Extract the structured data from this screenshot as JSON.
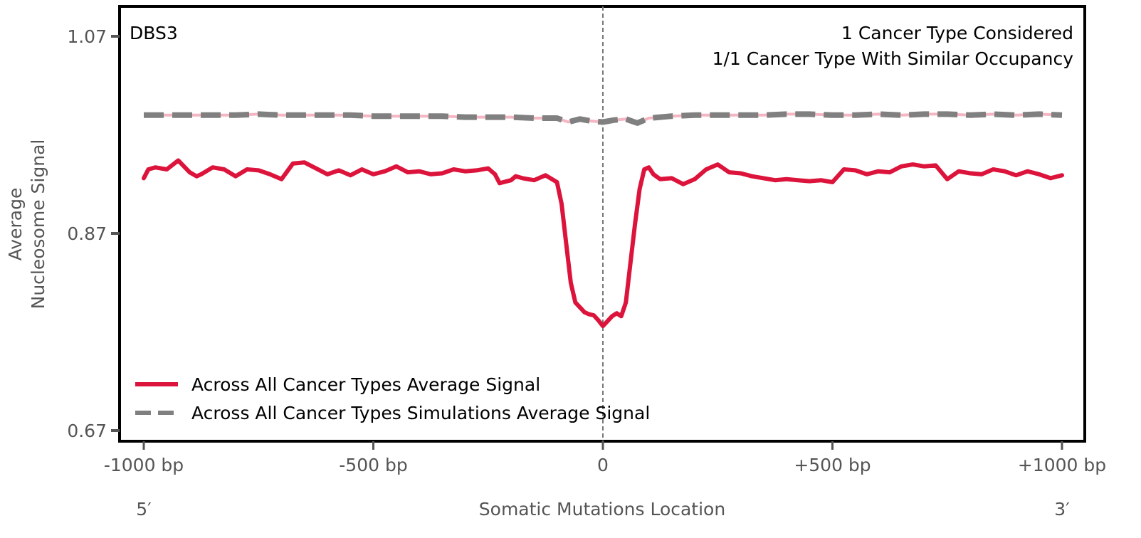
{
  "chart_data": {
    "type": "line",
    "title": "",
    "signature_label": "DBS3",
    "annotations": [
      "1 Cancer Type Considered",
      "1/1 Cancer Type With Similar Occupancy"
    ],
    "xlabel": "Somatic Mutations Location",
    "ylabel_lines": [
      "Average",
      "Nucleosome Signal"
    ],
    "x_end_labels": {
      "left": "5′",
      "right": "3′"
    },
    "xlim": [
      -1000,
      1000
    ],
    "ylim": [
      0.67,
      1.07
    ],
    "x_ticks": [
      {
        "value": -1000,
        "label": "-1000 bp"
      },
      {
        "value": -500,
        "label": "-500 bp"
      },
      {
        "value": 0,
        "label": "0"
      },
      {
        "value": 500,
        "label": "+500 bp"
      },
      {
        "value": 1000,
        "label": "+1000 bp"
      }
    ],
    "y_ticks": [
      {
        "value": 1.07,
        "label": "1.07"
      },
      {
        "value": 0.87,
        "label": "0.87"
      },
      {
        "value": 0.67,
        "label": "0.67"
      }
    ],
    "grid": false,
    "center_line": {
      "x": 0,
      "style": "dashed",
      "color": "#777777"
    },
    "legend": {
      "position": "bottom-left",
      "entries": [
        {
          "label": "Across All Cancer Types Average Signal",
          "style": "solid",
          "color": "#DC143C"
        },
        {
          "label": "Across All Cancer Types Simulations Average Signal",
          "style": "dashed",
          "color": "#808080"
        }
      ]
    },
    "series": [
      {
        "name": "Across All Cancer Types Average Signal",
        "color": "#DC143C",
        "style": "solid",
        "x": [
          -1000,
          -990,
          -975,
          -950,
          -925,
          -900,
          -885,
          -875,
          -850,
          -825,
          -800,
          -775,
          -750,
          -725,
          -700,
          -675,
          -650,
          -625,
          -600,
          -575,
          -550,
          -525,
          -500,
          -475,
          -450,
          -425,
          -400,
          -375,
          -350,
          -325,
          -300,
          -275,
          -250,
          -235,
          -225,
          -200,
          -190,
          -175,
          -150,
          -125,
          -100,
          -90,
          -80,
          -70,
          -60,
          -50,
          -40,
          -30,
          -20,
          -10,
          0,
          10,
          20,
          30,
          40,
          50,
          60,
          70,
          80,
          90,
          100,
          110,
          125,
          150,
          175,
          200,
          225,
          250,
          275,
          300,
          325,
          350,
          375,
          400,
          425,
          450,
          475,
          500,
          525,
          550,
          575,
          600,
          625,
          650,
          675,
          700,
          725,
          750,
          775,
          800,
          825,
          850,
          875,
          900,
          925,
          950,
          975,
          1000
        ],
        "values": [
          0.926,
          0.935,
          0.937,
          0.935,
          0.944,
          0.932,
          0.928,
          0.93,
          0.937,
          0.935,
          0.928,
          0.935,
          0.934,
          0.93,
          0.925,
          0.941,
          0.942,
          0.936,
          0.93,
          0.934,
          0.929,
          0.935,
          0.93,
          0.933,
          0.938,
          0.932,
          0.933,
          0.93,
          0.931,
          0.935,
          0.933,
          0.934,
          0.936,
          0.93,
          0.921,
          0.924,
          0.928,
          0.926,
          0.924,
          0.929,
          0.922,
          0.9,
          0.86,
          0.82,
          0.8,
          0.795,
          0.79,
          0.788,
          0.787,
          0.782,
          0.776,
          0.781,
          0.786,
          0.789,
          0.786,
          0.8,
          0.84,
          0.88,
          0.915,
          0.935,
          0.937,
          0.93,
          0.925,
          0.926,
          0.92,
          0.925,
          0.935,
          0.94,
          0.932,
          0.931,
          0.928,
          0.926,
          0.924,
          0.925,
          0.924,
          0.923,
          0.924,
          0.922,
          0.935,
          0.934,
          0.93,
          0.933,
          0.932,
          0.938,
          0.94,
          0.938,
          0.939,
          0.925,
          0.933,
          0.931,
          0.93,
          0.935,
          0.933,
          0.929,
          0.933,
          0.93,
          0.926,
          0.929
        ]
      },
      {
        "name": "Across All Cancer Types Simulations Average Signal",
        "color": "#808080",
        "style": "dashed",
        "x": [
          -1000,
          -950,
          -900,
          -850,
          -800,
          -750,
          -700,
          -650,
          -600,
          -550,
          -500,
          -450,
          -400,
          -350,
          -300,
          -250,
          -200,
          -150,
          -100,
          -75,
          -50,
          -25,
          0,
          25,
          50,
          75,
          100,
          125,
          150,
          200,
          250,
          300,
          350,
          400,
          450,
          500,
          550,
          600,
          650,
          700,
          750,
          800,
          850,
          900,
          950,
          1000
        ],
        "values": [
          0.99,
          0.99,
          0.99,
          0.99,
          0.99,
          0.991,
          0.99,
          0.99,
          0.99,
          0.99,
          0.989,
          0.989,
          0.989,
          0.989,
          0.988,
          0.988,
          0.988,
          0.987,
          0.987,
          0.983,
          0.986,
          0.984,
          0.983,
          0.985,
          0.986,
          0.982,
          0.987,
          0.988,
          0.989,
          0.99,
          0.99,
          0.99,
          0.99,
          0.991,
          0.991,
          0.99,
          0.99,
          0.991,
          0.99,
          0.991,
          0.991,
          0.99,
          0.991,
          0.99,
          0.991,
          0.99
        ]
      }
    ]
  }
}
